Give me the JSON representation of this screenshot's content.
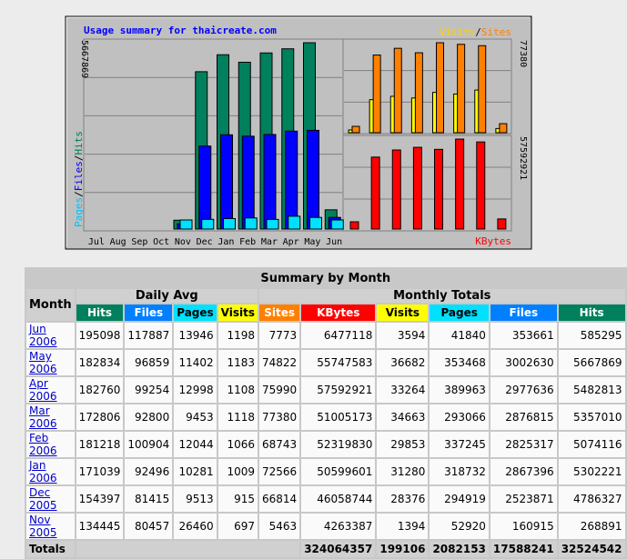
{
  "chart": {
    "title": "Usage summary for thaicreate.com",
    "left_axis_max": "5667869",
    "left_axis_series": [
      "Pages",
      "/",
      "Files",
      "/",
      "Hits"
    ],
    "top_right_legend": [
      "Visits",
      "/",
      "Sites"
    ],
    "top_right_axis_max": "77380",
    "bottom_right_axis_max": "57592921",
    "bottom_right_legend": "KBytes",
    "month_labels": [
      "Jul",
      "Aug",
      "Sep",
      "Oct",
      "Nov",
      "Dec",
      "Jan",
      "Feb",
      "Mar",
      "Apr",
      "May",
      "Jun"
    ],
    "colors": {
      "hits": "#00805c",
      "files": "#0000ff",
      "pages": "#00e0ff",
      "visits": "#ffff00",
      "sites": "#ff8000",
      "kbytes": "#ff0000"
    }
  },
  "chart_data": {
    "type": "bar",
    "categories": [
      "Jul",
      "Aug",
      "Sep",
      "Oct",
      "Nov",
      "Dec",
      "Jan",
      "Feb",
      "Mar",
      "Apr",
      "May",
      "Jun"
    ],
    "series": [
      {
        "name": "Hits",
        "values": [
          0,
          0,
          0,
          0,
          268891,
          4786327,
          5302221,
          5074116,
          5357010,
          5482813,
          5667869,
          585295
        ]
      },
      {
        "name": "Files",
        "values": [
          0,
          0,
          0,
          0,
          160915,
          2523871,
          2867396,
          2825317,
          2876815,
          2977636,
          3002630,
          353661
        ]
      },
      {
        "name": "Pages",
        "values": [
          0,
          0,
          0,
          0,
          52920,
          294919,
          318732,
          337245,
          293066,
          389963,
          353468,
          41840
        ]
      },
      {
        "name": "Visits",
        "values": [
          0,
          0,
          0,
          0,
          1394,
          28376,
          31280,
          29853,
          34663,
          33264,
          36682,
          3594
        ]
      },
      {
        "name": "Sites",
        "values": [
          0,
          0,
          0,
          0,
          5463,
          66814,
          72566,
          68743,
          77380,
          75990,
          74822,
          7773
        ]
      },
      {
        "name": "KBytes",
        "values": [
          0,
          0,
          0,
          0,
          4263387,
          46058744,
          50599601,
          52319830,
          51005173,
          57592921,
          55747583,
          6477118
        ]
      }
    ],
    "title": "Usage summary for thaicreate.com"
  },
  "table": {
    "title": "Summary by Month",
    "month_header": "Month",
    "daily_avg_header": "Daily Avg",
    "monthly_totals_header": "Monthly Totals",
    "daily_cols": [
      {
        "label": "Hits",
        "cls": "c-hits"
      },
      {
        "label": "Files",
        "cls": "c-files"
      },
      {
        "label": "Pages",
        "cls": "c-pages"
      },
      {
        "label": "Visits",
        "cls": "c-visits"
      }
    ],
    "total_cols": [
      {
        "label": "Sites",
        "cls": "c-sites"
      },
      {
        "label": "KBytes",
        "cls": "c-kb"
      },
      {
        "label": "Visits",
        "cls": "c-visits"
      },
      {
        "label": "Pages",
        "cls": "c-pages"
      },
      {
        "label": "Files",
        "cls": "c-files"
      },
      {
        "label": "Hits",
        "cls": "c-hits"
      }
    ],
    "rows": [
      {
        "month": "Jun 2006",
        "cells": [
          "195098",
          "117887",
          "13946",
          "1198",
          "7773",
          "6477118",
          "3594",
          "41840",
          "353661",
          "585295"
        ]
      },
      {
        "month": "May 2006",
        "cells": [
          "182834",
          "96859",
          "11402",
          "1183",
          "74822",
          "55747583",
          "36682",
          "353468",
          "3002630",
          "5667869"
        ]
      },
      {
        "month": "Apr 2006",
        "cells": [
          "182760",
          "99254",
          "12998",
          "1108",
          "75990",
          "57592921",
          "33264",
          "389963",
          "2977636",
          "5482813"
        ]
      },
      {
        "month": "Mar 2006",
        "cells": [
          "172806",
          "92800",
          "9453",
          "1118",
          "77380",
          "51005173",
          "34663",
          "293066",
          "2876815",
          "5357010"
        ]
      },
      {
        "month": "Feb 2006",
        "cells": [
          "181218",
          "100904",
          "12044",
          "1066",
          "68743",
          "52319830",
          "29853",
          "337245",
          "2825317",
          "5074116"
        ]
      },
      {
        "month": "Jan 2006",
        "cells": [
          "171039",
          "92496",
          "10281",
          "1009",
          "72566",
          "50599601",
          "31280",
          "318732",
          "2867396",
          "5302221"
        ]
      },
      {
        "month": "Dec 2005",
        "cells": [
          "154397",
          "81415",
          "9513",
          "915",
          "66814",
          "46058744",
          "28376",
          "294919",
          "2523871",
          "4786327"
        ]
      },
      {
        "month": "Nov 2005",
        "cells": [
          "134445",
          "80457",
          "26460",
          "697",
          "5463",
          "4263387",
          "1394",
          "52920",
          "160915",
          "268891"
        ]
      }
    ],
    "totals_label": "Totals",
    "totals": [
      "324064357",
      "199106",
      "2082153",
      "17588241",
      "32524542"
    ]
  }
}
